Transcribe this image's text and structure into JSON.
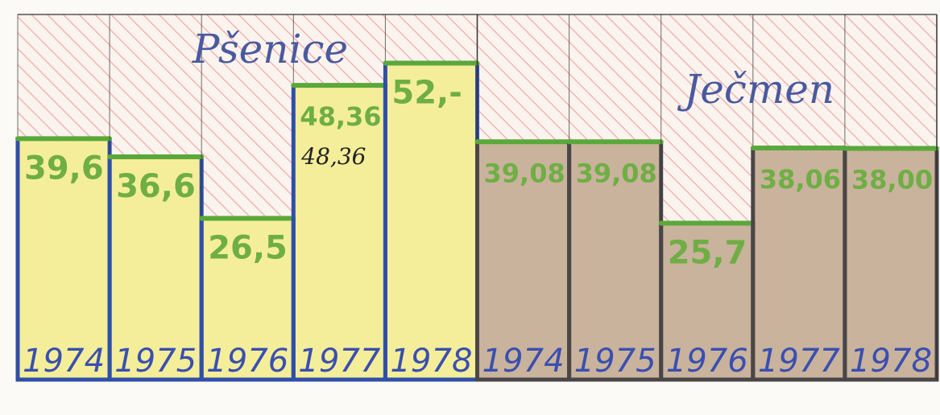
{
  "chart_data": {
    "type": "bar",
    "title": "",
    "xlabel": "",
    "ylabel": "",
    "ylim": [
      0,
      60
    ],
    "grid": false,
    "legend": "none",
    "groups": [
      {
        "name": "Pšenice",
        "fill": "#f4ee9a",
        "outline": "#2f4fa8",
        "bars": [
          {
            "year": "1974",
            "value": 39.6,
            "label": "39,6"
          },
          {
            "year": "1975",
            "value": 36.6,
            "label": "36,6"
          },
          {
            "year": "1976",
            "value": 26.5,
            "label": "26,5"
          },
          {
            "year": "1977",
            "value": 48.36,
            "label": "48,36",
            "extra_label": "48,36"
          },
          {
            "year": "1978",
            "value": 52.0,
            "label": "52,-"
          }
        ]
      },
      {
        "name": "Ječmen",
        "fill": "#c9b39c",
        "outline": "#4a4648",
        "bars": [
          {
            "year": "1974",
            "value": 39.08,
            "label": "39,08"
          },
          {
            "year": "1975",
            "value": 39.08,
            "label": "39,08"
          },
          {
            "year": "1976",
            "value": 25.7,
            "label": "25,7"
          },
          {
            "year": "1977",
            "value": 38.06,
            "label": "38,06"
          },
          {
            "year": "1978",
            "value": 38.0,
            "label": "38,00"
          }
        ]
      }
    ]
  },
  "colors": {
    "top_line": "#5aa83a",
    "value_text": "#6fae45",
    "year_text": "#3a4fb0",
    "hatch": "#eaa3a0",
    "grid_line": "#333333"
  }
}
